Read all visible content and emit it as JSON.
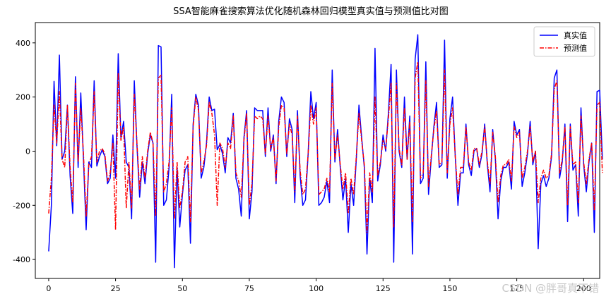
{
  "chart_data": {
    "type": "line",
    "title": "SSA智能麻雀搜索算法优化随机森林回归模型真实值与预测值比对图",
    "xlabel": "",
    "ylabel": "",
    "xlim": [
      -5,
      206
    ],
    "ylim": [
      -470,
      475
    ],
    "xticks": [
      0,
      25,
      50,
      75,
      100,
      125,
      150,
      175,
      200
    ],
    "yticks": [
      -400,
      -200,
      0,
      200,
      400
    ],
    "legend_position": "upper right",
    "grid": false,
    "series": [
      {
        "name": "真实值",
        "color": "#0000ff",
        "style": "solid",
        "values": [
          -370,
          -200,
          258,
          20,
          355,
          -30,
          0,
          170,
          -90,
          -230,
          275,
          -60,
          215,
          -30,
          -290,
          -40,
          -60,
          260,
          -55,
          -20,
          5,
          -20,
          -120,
          -100,
          60,
          -100,
          360,
          50,
          110,
          -40,
          -60,
          -250,
          260,
          20,
          -170,
          -40,
          -120,
          -10,
          60,
          30,
          -410,
          390,
          385,
          -200,
          -180,
          -60,
          210,
          -430,
          -60,
          -280,
          -160,
          -70,
          -50,
          -340,
          100,
          210,
          170,
          -100,
          -60,
          30,
          200,
          150,
          155,
          5,
          25,
          -10,
          -80,
          50,
          30,
          140,
          -100,
          -140,
          -240,
          50,
          150,
          -250,
          -150,
          160,
          150,
          150,
          150,
          -20,
          160,
          0,
          60,
          -120,
          110,
          200,
          180,
          -20,
          120,
          80,
          -190,
          150,
          -90,
          -200,
          -180,
          -10,
          220,
          120,
          180,
          -200,
          -190,
          -170,
          -110,
          -190,
          300,
          -40,
          80,
          -60,
          -180,
          -100,
          -300,
          -120,
          -200,
          -30,
          170,
          50,
          -60,
          -380,
          -100,
          -190,
          380,
          -110,
          -50,
          60,
          0,
          140,
          320,
          -410,
          300,
          0,
          -60,
          200,
          -30,
          130,
          -380,
          340,
          430,
          -120,
          -100,
          330,
          -160,
          -30,
          90,
          180,
          -60,
          -50,
          410,
          -100,
          120,
          200,
          -20,
          -200,
          -80,
          -80,
          100,
          -50,
          -90,
          0,
          10,
          -60,
          -10,
          100,
          -50,
          -150,
          80,
          -30,
          -250,
          -110,
          -60,
          -60,
          -40,
          -140,
          110,
          60,
          80,
          -130,
          -80,
          -10,
          110,
          -50,
          0,
          -360,
          -120,
          -90,
          -130,
          -100,
          -20,
          270,
          300,
          -100,
          -40,
          100,
          -260,
          100,
          -70,
          -50,
          -240,
          160,
          -50,
          -150,
          -40,
          30,
          -300,
          220,
          225,
          -30
        ]
      },
      {
        "name": "预测值",
        "color": "#ff0000",
        "style": "dashdot",
        "values": [
          -230,
          -100,
          170,
          30,
          220,
          -30,
          -60,
          170,
          -60,
          -190,
          250,
          -40,
          160,
          -10,
          -240,
          -50,
          -20,
          220,
          -40,
          0,
          10,
          -10,
          -110,
          -80,
          30,
          -290,
          290,
          40,
          90,
          -210,
          -40,
          -210,
          210,
          30,
          -140,
          -20,
          -100,
          0,
          70,
          30,
          -240,
          270,
          280,
          -150,
          -120,
          -40,
          160,
          -250,
          -40,
          -210,
          -150,
          -40,
          -20,
          -260,
          90,
          200,
          150,
          -80,
          -40,
          20,
          180,
          140,
          60,
          -200,
          30,
          10,
          -60,
          30,
          10,
          130,
          -80,
          -110,
          -170,
          40,
          140,
          -200,
          -120,
          130,
          120,
          130,
          120,
          -10,
          130,
          10,
          50,
          -110,
          90,
          170,
          160,
          -10,
          100,
          60,
          -150,
          130,
          -70,
          -160,
          -140,
          -10,
          170,
          100,
          160,
          -160,
          -150,
          -140,
          -100,
          -150,
          250,
          -30,
          60,
          -50,
          -140,
          -80,
          -230,
          -100,
          -160,
          -20,
          140,
          40,
          -50,
          -300,
          -80,
          -150,
          200,
          -90,
          -40,
          40,
          10,
          120,
          250,
          -280,
          250,
          10,
          -50,
          160,
          -30,
          110,
          -260,
          270,
          330,
          -100,
          -80,
          260,
          -130,
          -20,
          80,
          150,
          -50,
          -40,
          300,
          -80,
          100,
          160,
          -20,
          -160,
          -60,
          -60,
          90,
          -40,
          -70,
          10,
          10,
          -50,
          0,
          90,
          -40,
          -120,
          70,
          -20,
          -190,
          -90,
          -50,
          -50,
          -30,
          -110,
          90,
          50,
          70,
          -100,
          -60,
          0,
          90,
          -40,
          0,
          -190,
          -100,
          -70,
          -100,
          -90,
          -10,
          230,
          260,
          -80,
          -30,
          90,
          -200,
          90,
          -50,
          -40,
          -190,
          130,
          -40,
          -120,
          -30,
          30,
          -220,
          170,
          180,
          -80
        ]
      }
    ]
  },
  "watermark": "CSDN @胖哥真不错"
}
